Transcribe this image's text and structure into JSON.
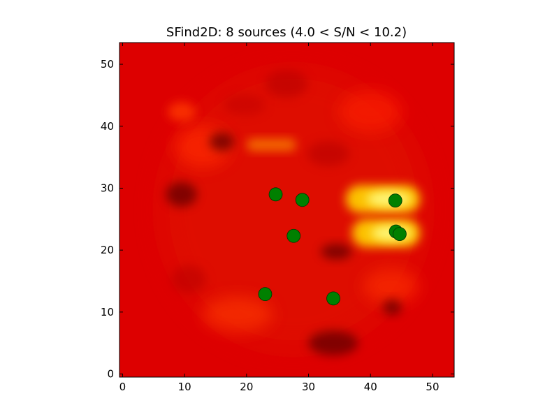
{
  "chart_data": {
    "type": "heatmap",
    "title": "SFind2D: 8 sources (4.0 < S/N < 10.2)",
    "xlabel": "",
    "ylabel": "",
    "xlim": [
      -0.5,
      53.5
    ],
    "ylim": [
      -0.5,
      53.5
    ],
    "x_ticks": [
      0,
      10,
      20,
      30,
      40,
      50
    ],
    "y_ticks": [
      0,
      10,
      20,
      30,
      40,
      50
    ],
    "grid": false,
    "colormap": "hot",
    "background_color": "#dd0000",
    "marker_color": "#008000",
    "sources": [
      {
        "x": 24.7,
        "y": 29.0
      },
      {
        "x": 29.0,
        "y": 28.1
      },
      {
        "x": 44.0,
        "y": 28.0
      },
      {
        "x": 27.6,
        "y": 22.3
      },
      {
        "x": 44.1,
        "y": 23.0
      },
      {
        "x": 44.7,
        "y": 22.6
      },
      {
        "x": 23.0,
        "y": 12.9
      },
      {
        "x": 34.0,
        "y": 12.2
      }
    ],
    "bright_regions": [
      {
        "x_range": [
          36,
          48
        ],
        "y_range": [
          26,
          30.5
        ],
        "level": "bright"
      },
      {
        "x_range": [
          37,
          48
        ],
        "y_range": [
          20.5,
          25
        ],
        "level": "bright"
      },
      {
        "x_range": [
          20,
          28
        ],
        "y_range": [
          36,
          38
        ],
        "level": "medium"
      }
    ],
    "dark_regions": [
      {
        "x_range": [
          42,
          45
        ],
        "y_range": [
          9.5,
          12
        ],
        "level": "dark"
      },
      {
        "x_range": [
          14,
          18
        ],
        "y_range": [
          36,
          39
        ],
        "level": "dark"
      },
      {
        "x_range": [
          32,
          37
        ],
        "y_range": [
          18.5,
          21
        ],
        "level": "dark"
      },
      {
        "x_range": [
          30,
          38
        ],
        "y_range": [
          3,
          7
        ],
        "level": "dark"
      },
      {
        "x_range": [
          7,
          12
        ],
        "y_range": [
          27,
          31
        ],
        "level": "dark"
      }
    ]
  }
}
